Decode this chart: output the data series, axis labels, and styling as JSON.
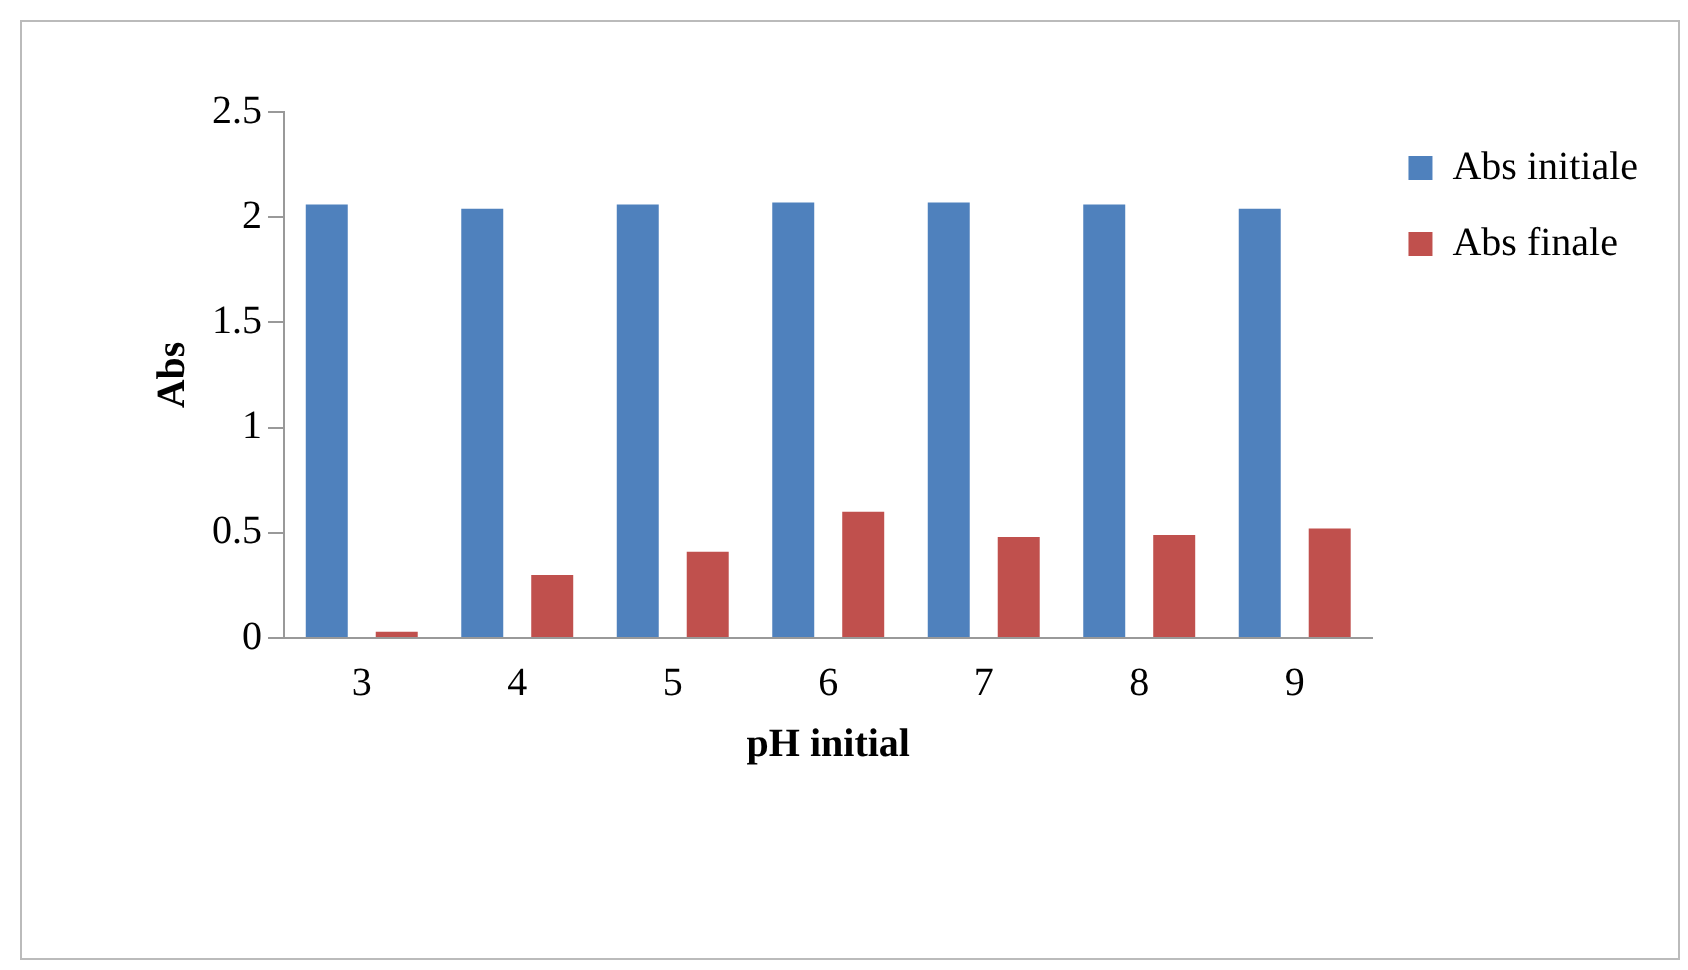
{
  "chart_data": {
    "type": "bar",
    "xlabel": "pH initial",
    "ylabel": "Abs",
    "categories": [
      "3",
      "4",
      "5",
      "6",
      "7",
      "8",
      "9"
    ],
    "series": [
      {
        "name": "Abs initiale",
        "color": "#4f81bd",
        "values": [
          2.06,
          2.04,
          2.06,
          2.07,
          2.07,
          2.06,
          2.04
        ]
      },
      {
        "name": "Abs finale",
        "color": "#c0504d",
        "values": [
          0.03,
          0.3,
          0.41,
          0.6,
          0.48,
          0.49,
          0.52
        ]
      }
    ],
    "ylim": [
      0,
      2.5
    ],
    "yticks": [
      0,
      0.5,
      1,
      1.5,
      2,
      2.5
    ],
    "grid": false,
    "legend": "top right"
  }
}
